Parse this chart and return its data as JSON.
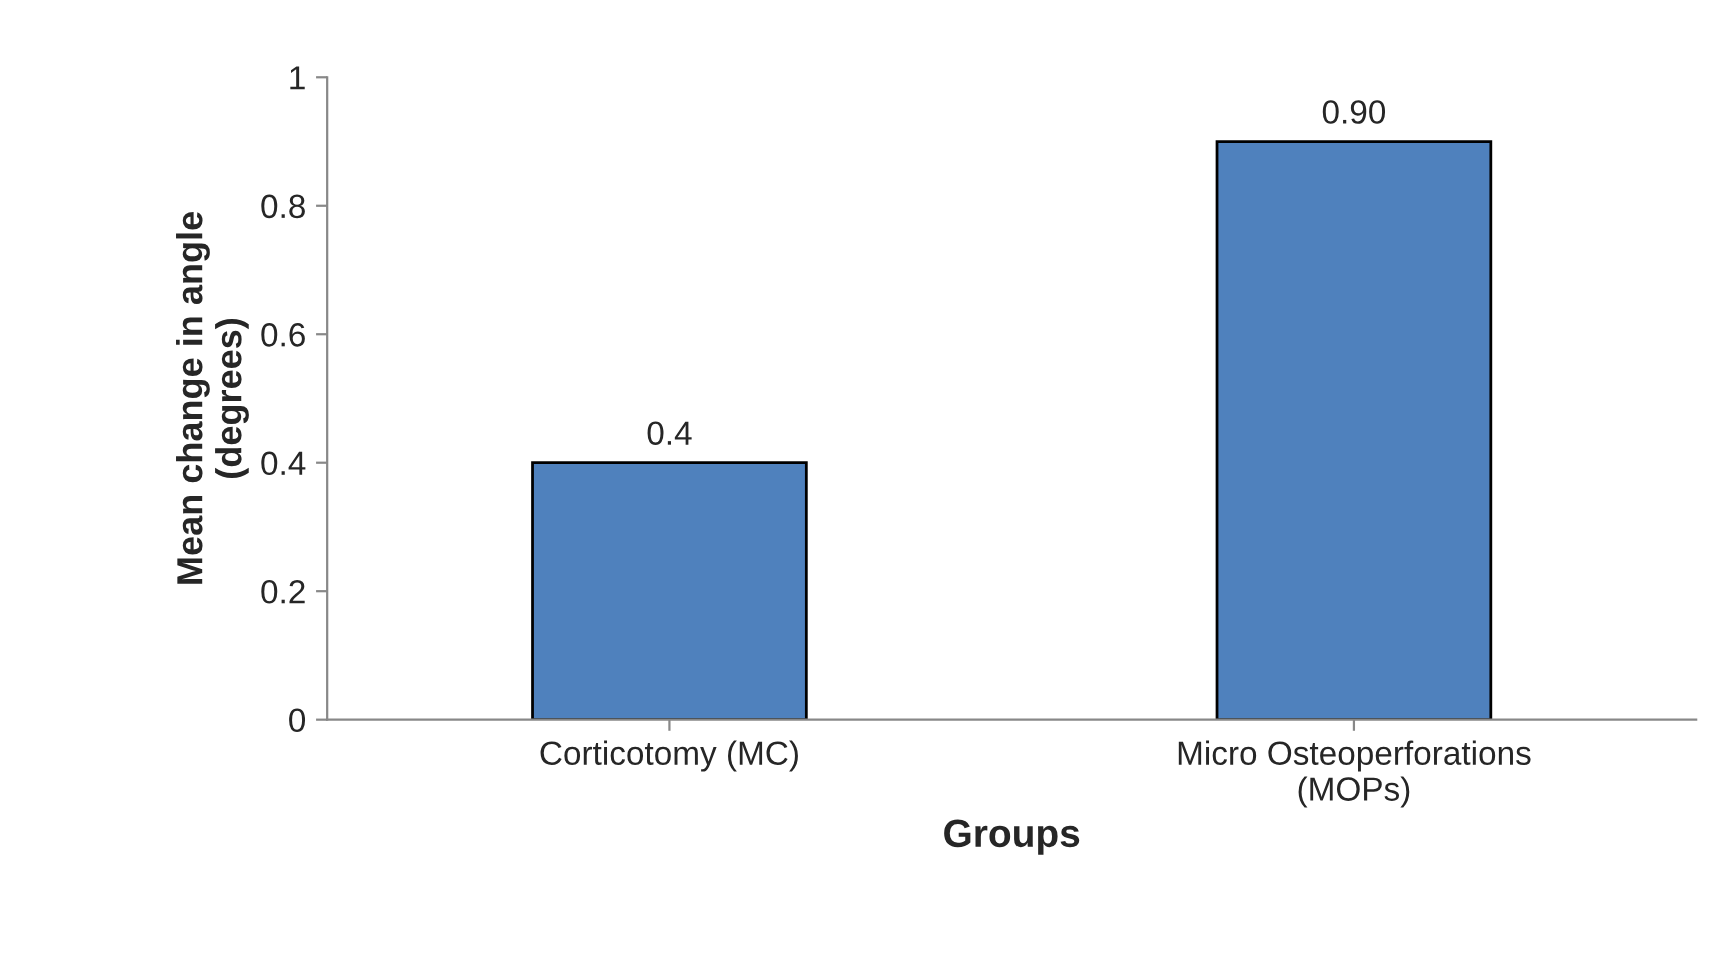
{
  "chart_data": {
    "type": "bar",
    "xlabel": "Groups",
    "ylabel": "Mean change in angle\n(degrees)",
    "categories": [
      "Corticotomy (MC)",
      "Micro Osteoperforations\n(MOPs)"
    ],
    "values": [
      0.4,
      0.9
    ],
    "value_labels": [
      "0.4",
      "0.90"
    ],
    "color": "#4f81bd",
    "ylim": [
      0,
      1
    ],
    "yticks": [
      0,
      0.2,
      0.4,
      0.6,
      0.8,
      1
    ],
    "grid": false,
    "legend": false
  }
}
